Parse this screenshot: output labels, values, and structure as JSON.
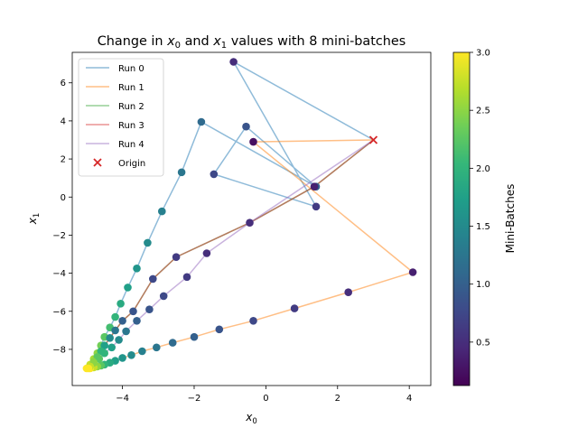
{
  "chart_data": {
    "type": "scatter",
    "title_parts": [
      "Change in ",
      "x",
      "0",
      " and ",
      "x",
      "1",
      " values with 8 mini-batches"
    ],
    "xlabel": {
      "base": "x",
      "sub": "0"
    },
    "ylabel": {
      "base": "x",
      "sub": "1"
    },
    "xlim": [
      -5.4,
      4.6
    ],
    "ylim": [
      -9.9,
      7.6
    ],
    "xticks": [
      -4,
      -2,
      0,
      2,
      4
    ],
    "yticks": [
      -8,
      -6,
      -4,
      -2,
      0,
      2,
      4,
      6
    ],
    "xtick_labels": [
      "−4",
      "−2",
      "0",
      "2",
      "4"
    ],
    "ytick_labels": [
      "−8",
      "−6",
      "−4",
      "−2",
      "0",
      "2",
      "4",
      "6"
    ],
    "legend": {
      "position": "top-left",
      "origin_label": "Origin"
    },
    "colorbar": {
      "label": "Mini-Batches",
      "range": [
        0.125,
        3.0
      ],
      "ticks": [
        0.5,
        1.0,
        1.5,
        2.0,
        2.5,
        3.0
      ],
      "tick_labels": [
        "0.5",
        "1.0",
        "1.5",
        "2.0",
        "2.5",
        "3.0"
      ],
      "colormap": "viridis"
    },
    "origin": {
      "x": 3.0,
      "y": 3.0,
      "color": "#d62728"
    },
    "series": [
      {
        "name": "Run 0",
        "color": "#1f77b4",
        "x": [
          3.0,
          -0.9,
          1.4,
          -1.45,
          -0.55,
          1.4,
          -1.8,
          -2.35,
          -2.9,
          -3.3,
          -3.6,
          -3.85,
          -4.05,
          -4.2,
          -4.35,
          -4.5,
          -4.6,
          -4.7,
          -4.8,
          -4.9,
          -5.0
        ],
        "y": [
          3.0,
          7.1,
          -0.5,
          1.2,
          3.7,
          0.55,
          3.95,
          1.3,
          -0.75,
          -2.4,
          -3.75,
          -4.75,
          -5.6,
          -6.3,
          -6.85,
          -7.35,
          -7.8,
          -8.2,
          -8.5,
          -8.8,
          -9.0
        ]
      },
      {
        "name": "Run 1",
        "color": "#ff7f0e",
        "x": [
          3.0,
          -0.35,
          4.1,
          2.3,
          0.8,
          -0.35,
          -1.3,
          -2.0,
          -2.6,
          -3.05,
          -3.45,
          -3.75,
          -4.0,
          -4.2,
          -4.35,
          -4.5,
          -4.6,
          -4.7,
          -4.8,
          -4.9,
          -5.0
        ],
        "y": [
          3.0,
          2.9,
          -3.95,
          -5.0,
          -5.85,
          -6.5,
          -6.95,
          -7.35,
          -7.65,
          -7.9,
          -8.1,
          -8.3,
          -8.45,
          -8.6,
          -8.7,
          -8.8,
          -8.85,
          -8.9,
          -8.95,
          -9.0,
          -9.0
        ]
      },
      {
        "name": "Run 2",
        "color": "#2ca02c",
        "x": [
          3.0,
          1.35,
          -0.45,
          -2.5,
          -3.15,
          -3.7,
          -4.0,
          -4.2,
          -4.35,
          -4.5,
          -4.6,
          -4.7,
          -4.8,
          -4.9,
          -5.0
        ],
        "y": [
          3.0,
          0.55,
          -1.35,
          -3.15,
          -4.3,
          -6.0,
          -6.5,
          -7.0,
          -7.4,
          -7.8,
          -8.1,
          -8.4,
          -8.65,
          -8.85,
          -9.0
        ]
      },
      {
        "name": "Run 3",
        "color": "#d62728",
        "x": [
          3.0,
          1.35,
          -0.45,
          -2.5,
          -3.15,
          -3.7,
          -4.0,
          -4.2,
          -4.35,
          -4.5,
          -4.6,
          -4.7,
          -4.8,
          -4.9,
          -5.0
        ],
        "y": [
          3.0,
          0.55,
          -1.35,
          -3.15,
          -4.3,
          -6.0,
          -6.5,
          -7.0,
          -7.4,
          -7.8,
          -8.1,
          -8.4,
          -8.65,
          -8.85,
          -9.0
        ]
      },
      {
        "name": "Run 4",
        "color": "#9467bd",
        "x": [
          3.0,
          -0.45,
          -1.65,
          -2.2,
          -2.85,
          -3.25,
          -3.6,
          -3.9,
          -4.1,
          -4.3,
          -4.5,
          -4.65,
          -4.8,
          -4.9,
          -5.0
        ],
        "y": [
          3.0,
          -1.35,
          -2.95,
          -4.2,
          -5.2,
          -5.9,
          -6.5,
          -7.05,
          -7.5,
          -7.9,
          -8.2,
          -8.5,
          -8.7,
          -8.9,
          -9.0
        ]
      }
    ],
    "points": {
      "x": [
        -0.9,
        1.4,
        -1.45,
        -0.55,
        1.4,
        -1.8,
        -2.35,
        -2.9,
        -3.3,
        -3.6,
        -3.85,
        -4.05,
        -4.2,
        -4.35,
        -4.5,
        -4.6,
        -4.7,
        -4.8,
        -4.9,
        -5.0,
        -0.35,
        4.1,
        2.3,
        0.8,
        -0.35,
        -1.3,
        -2.0,
        -2.6,
        -3.05,
        -3.45,
        -3.75,
        -4.0,
        -4.2,
        -4.35,
        -4.5,
        -4.6,
        -4.7,
        -4.8,
        -4.9,
        1.35,
        -0.45,
        -2.5,
        -3.15,
        -3.7,
        -4.0,
        -4.2,
        -4.35,
        -4.5,
        -4.6,
        -4.7,
        -4.8,
        -4.9,
        -1.65,
        -2.2,
        -2.85,
        -3.25,
        -3.6,
        -3.9,
        -4.1,
        -4.3,
        -4.5,
        -4.65,
        -4.8,
        -4.9,
        -4.95
      ],
      "y": [
        7.1,
        -0.5,
        1.2,
        3.7,
        0.55,
        3.95,
        1.3,
        -0.75,
        -2.4,
        -3.75,
        -4.75,
        -5.6,
        -6.3,
        -6.85,
        -7.35,
        -7.8,
        -8.2,
        -8.5,
        -8.8,
        -9.0,
        2.9,
        -3.95,
        -5.0,
        -5.85,
        -6.5,
        -6.95,
        -7.35,
        -7.65,
        -7.9,
        -8.1,
        -8.3,
        -8.45,
        -8.6,
        -8.7,
        -8.8,
        -8.85,
        -8.9,
        -8.95,
        -9.0,
        0.55,
        -1.35,
        -3.15,
        -4.3,
        -6.0,
        -6.5,
        -7.0,
        -7.4,
        -7.8,
        -8.1,
        -8.4,
        -8.65,
        -8.85,
        -2.95,
        -4.2,
        -5.2,
        -5.9,
        -6.5,
        -7.05,
        -7.5,
        -7.9,
        -8.2,
        -8.5,
        -8.7,
        -8.9,
        -9.0
      ],
      "c": [
        0.5,
        0.625,
        0.75,
        0.875,
        1.0,
        1.125,
        1.25,
        1.375,
        1.5,
        1.625,
        1.75,
        1.875,
        2.0,
        2.125,
        2.25,
        2.375,
        2.5,
        2.625,
        2.75,
        3.0,
        0.25,
        0.375,
        0.5,
        0.625,
        0.75,
        0.875,
        1.0,
        1.125,
        1.25,
        1.375,
        1.5,
        1.625,
        1.75,
        1.875,
        2.0,
        2.25,
        2.5,
        2.75,
        3.0,
        0.375,
        0.5,
        0.625,
        0.75,
        0.875,
        1.0,
        1.25,
        1.5,
        1.75,
        2.0,
        2.25,
        2.5,
        2.75,
        0.5,
        0.625,
        0.75,
        0.875,
        1.0,
        1.25,
        1.5,
        1.75,
        2.0,
        2.25,
        2.5,
        2.75,
        3.0
      ]
    }
  }
}
